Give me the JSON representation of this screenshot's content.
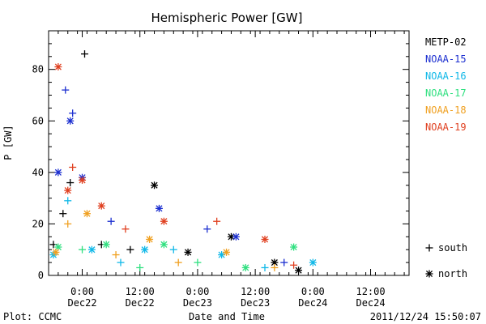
{
  "chart_data": {
    "type": "scatter",
    "title": "Hemispheric Power [GW]",
    "xlabel": "Date and Time",
    "ylabel": "P [GW]",
    "ylim": [
      0,
      95
    ],
    "y_ticks": [
      0,
      20,
      40,
      60,
      80
    ],
    "xlim": [
      "2011-12-21T17:00",
      "2011-12-24T20:00"
    ],
    "x_ticks": [
      {
        "time": "2011-12-22T00:00",
        "label": "0:00",
        "sublabel": "Dec22"
      },
      {
        "time": "2011-12-22T12:00",
        "label": "12:00",
        "sublabel": "Dec22"
      },
      {
        "time": "2011-12-23T00:00",
        "label": "0:00",
        "sublabel": "Dec23"
      },
      {
        "time": "2011-12-23T12:00",
        "label": "12:00",
        "sublabel": "Dec23"
      },
      {
        "time": "2011-12-24T00:00",
        "label": "0:00",
        "sublabel": "Dec24"
      },
      {
        "time": "2011-12-24T12:00",
        "label": "12:00",
        "sublabel": "Dec24"
      }
    ],
    "grid": false,
    "legend_position": "right",
    "marker_legend": [
      {
        "symbol": "+",
        "label": "south"
      },
      {
        "symbol": "*",
        "label": "north"
      }
    ],
    "series": [
      {
        "name": "METP-02",
        "color": "#000000",
        "points": [
          {
            "t": "2011-12-21T18:00",
            "v": 12,
            "hemi": "south"
          },
          {
            "t": "2011-12-21T20:00",
            "v": 24,
            "hemi": "south"
          },
          {
            "t": "2011-12-21T21:30",
            "v": 36,
            "hemi": "south"
          },
          {
            "t": "2011-12-22T00:30",
            "v": 86,
            "hemi": "south"
          },
          {
            "t": "2011-12-22T04:00",
            "v": 12,
            "hemi": "south"
          },
          {
            "t": "2011-12-22T10:00",
            "v": 10,
            "hemi": "south"
          },
          {
            "t": "2011-12-22T15:00",
            "v": 35,
            "hemi": "north"
          },
          {
            "t": "2011-12-22T22:00",
            "v": 9,
            "hemi": "north"
          },
          {
            "t": "2011-12-23T07:00",
            "v": 15,
            "hemi": "north"
          },
          {
            "t": "2011-12-23T16:00",
            "v": 5,
            "hemi": "north"
          },
          {
            "t": "2011-12-23T21:00",
            "v": 2,
            "hemi": "north"
          }
        ]
      },
      {
        "name": "NOAA-15",
        "color": "#1c2fd0",
        "points": [
          {
            "t": "2011-12-21T19:00",
            "v": 40,
            "hemi": "north"
          },
          {
            "t": "2011-12-21T20:30",
            "v": 72,
            "hemi": "south"
          },
          {
            "t": "2011-12-21T21:30",
            "v": 60,
            "hemi": "north"
          },
          {
            "t": "2011-12-21T22:00",
            "v": 63,
            "hemi": "south"
          },
          {
            "t": "2011-12-22T00:00",
            "v": 38,
            "hemi": "north"
          },
          {
            "t": "2011-12-22T06:00",
            "v": 21,
            "hemi": "south"
          },
          {
            "t": "2011-12-22T16:00",
            "v": 26,
            "hemi": "north"
          },
          {
            "t": "2011-12-23T02:00",
            "v": 18,
            "hemi": "south"
          },
          {
            "t": "2011-12-23T08:00",
            "v": 15,
            "hemi": "north"
          },
          {
            "t": "2011-12-23T18:00",
            "v": 5,
            "hemi": "south"
          }
        ]
      },
      {
        "name": "NOAA-16",
        "color": "#10b8e8",
        "points": [
          {
            "t": "2011-12-21T18:00",
            "v": 8,
            "hemi": "north"
          },
          {
            "t": "2011-12-21T21:00",
            "v": 29,
            "hemi": "south"
          },
          {
            "t": "2011-12-22T02:00",
            "v": 10,
            "hemi": "north"
          },
          {
            "t": "2011-12-22T08:00",
            "v": 5,
            "hemi": "south"
          },
          {
            "t": "2011-12-22T13:00",
            "v": 10,
            "hemi": "north"
          },
          {
            "t": "2011-12-22T19:00",
            "v": 10,
            "hemi": "south"
          },
          {
            "t": "2011-12-23T05:00",
            "v": 8,
            "hemi": "north"
          },
          {
            "t": "2011-12-23T14:00",
            "v": 3,
            "hemi": "south"
          },
          {
            "t": "2011-12-24T00:00",
            "v": 5,
            "hemi": "north"
          }
        ]
      },
      {
        "name": "NOAA-17",
        "color": "#30e080",
        "points": [
          {
            "t": "2011-12-21T19:00",
            "v": 11,
            "hemi": "north"
          },
          {
            "t": "2011-12-22T00:00",
            "v": 10,
            "hemi": "south"
          },
          {
            "t": "2011-12-22T05:00",
            "v": 12,
            "hemi": "north"
          },
          {
            "t": "2011-12-22T12:00",
            "v": 3,
            "hemi": "south"
          },
          {
            "t": "2011-12-22T17:00",
            "v": 12,
            "hemi": "north"
          },
          {
            "t": "2011-12-23T00:00",
            "v": 5,
            "hemi": "south"
          },
          {
            "t": "2011-12-23T10:00",
            "v": 3,
            "hemi": "north"
          },
          {
            "t": "2011-12-23T20:00",
            "v": 11,
            "hemi": "north"
          }
        ]
      },
      {
        "name": "NOAA-18",
        "color": "#f0a020",
        "points": [
          {
            "t": "2011-12-21T18:30",
            "v": 9,
            "hemi": "north"
          },
          {
            "t": "2011-12-21T21:00",
            "v": 20,
            "hemi": "south"
          },
          {
            "t": "2011-12-22T01:00",
            "v": 24,
            "hemi": "north"
          },
          {
            "t": "2011-12-22T07:00",
            "v": 8,
            "hemi": "south"
          },
          {
            "t": "2011-12-22T14:00",
            "v": 14,
            "hemi": "north"
          },
          {
            "t": "2011-12-22T20:00",
            "v": 5,
            "hemi": "south"
          },
          {
            "t": "2011-12-23T06:00",
            "v": 9,
            "hemi": "north"
          },
          {
            "t": "2011-12-23T16:00",
            "v": 3,
            "hemi": "south"
          }
        ]
      },
      {
        "name": "NOAA-19",
        "color": "#e04020",
        "points": [
          {
            "t": "2011-12-21T19:00",
            "v": 81,
            "hemi": "north"
          },
          {
            "t": "2011-12-21T21:00",
            "v": 33,
            "hemi": "north"
          },
          {
            "t": "2011-12-21T22:00",
            "v": 42,
            "hemi": "south"
          },
          {
            "t": "2011-12-22T00:00",
            "v": 37,
            "hemi": "north"
          },
          {
            "t": "2011-12-22T04:00",
            "v": 27,
            "hemi": "north"
          },
          {
            "t": "2011-12-22T09:00",
            "v": 18,
            "hemi": "south"
          },
          {
            "t": "2011-12-22T17:00",
            "v": 21,
            "hemi": "north"
          },
          {
            "t": "2011-12-23T04:00",
            "v": 21,
            "hemi": "south"
          },
          {
            "t": "2011-12-23T14:00",
            "v": 14,
            "hemi": "north"
          },
          {
            "t": "2011-12-23T20:00",
            "v": 4,
            "hemi": "south"
          }
        ]
      }
    ]
  },
  "footer": {
    "left": "Plot: CCMC",
    "right": "2011/12/24 15:50:07"
  }
}
